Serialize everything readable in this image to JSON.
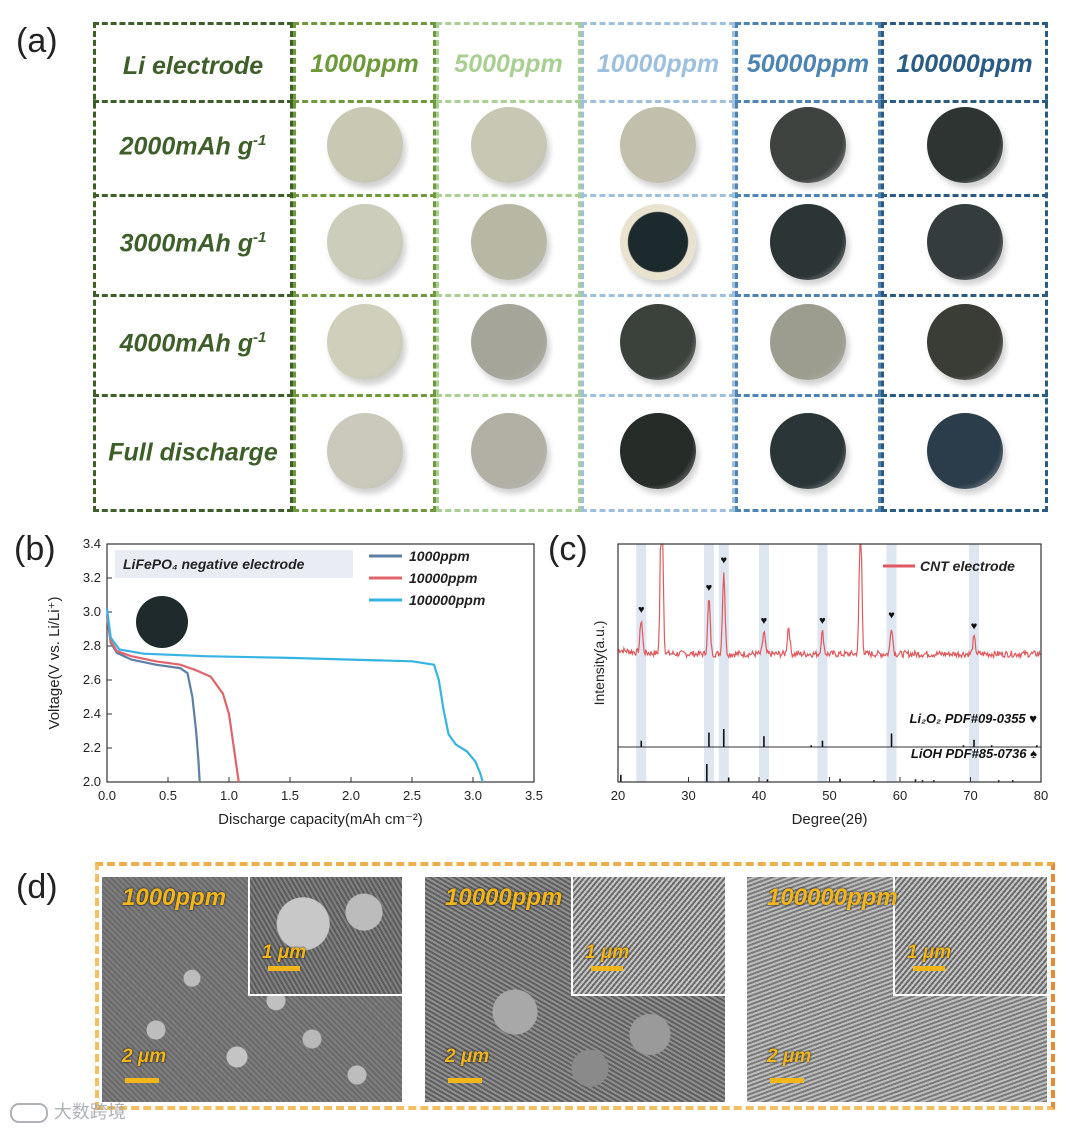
{
  "panel_labels": {
    "a": "(a)",
    "b": "(b)",
    "c": "(c)",
    "d": "(d)"
  },
  "panel_a": {
    "corner_label": "Li electrode",
    "columns": [
      {
        "label": "1000ppm",
        "color": "#6e9a3c"
      },
      {
        "label": "5000ppm",
        "color": "#a9cf93"
      },
      {
        "label": "10000ppm",
        "color": "#9cc0de"
      },
      {
        "label": "50000ppm",
        "color": "#4d84b3"
      },
      {
        "label": "100000ppm",
        "color": "#2a5b85"
      }
    ],
    "rows": [
      {
        "label": "2000mAh g",
        "sup": "-1"
      },
      {
        "label": "3000mAh g",
        "sup": "-1"
      },
      {
        "label": "4000mAh g",
        "sup": "-1"
      },
      {
        "label": "Full discharge",
        "sup": ""
      }
    ],
    "disc_colors": [
      [
        "#c9c8b3",
        "#c8c7b4",
        "#c2c0ac",
        "#3e4340",
        "#2d3432"
      ],
      [
        "#cdcdbb",
        "#b7b7a4",
        "#1d2a2d",
        "#2b3535",
        "#343c3d"
      ],
      [
        "#cfcfbc",
        "#a5a59a",
        "#3b423c",
        "#9c9c8f",
        "#3a3d36"
      ],
      [
        "#cbc9bb",
        "#b2b0a5",
        "#262c28",
        "#2a3538",
        "#2b3d4b"
      ]
    ]
  },
  "chart_data": [
    {
      "type": "line",
      "panel": "b",
      "xlabel": "Discharge capacity(mAh cm⁻²)",
      "ylabel": "Voltage(V vs. Li/Li⁺)",
      "annotation": "LiFePO₄ negative electrode",
      "xlim": [
        0.0,
        3.5
      ],
      "ylim": [
        2.0,
        3.4
      ],
      "xticks": [
        "0.0",
        "0.5",
        "1.0",
        "1.5",
        "2.0",
        "2.5",
        "3.0",
        "3.5"
      ],
      "yticks": [
        "2.0",
        "2.2",
        "2.4",
        "2.6",
        "2.8",
        "3.0",
        "3.2",
        "3.4"
      ],
      "legend_position": "top-right",
      "series": [
        {
          "name": "1000ppm",
          "color": "#5d7fa6",
          "points": [
            [
              0,
              2.98
            ],
            [
              0.03,
              2.82
            ],
            [
              0.08,
              2.76
            ],
            [
              0.2,
              2.72
            ],
            [
              0.4,
              2.69
            ],
            [
              0.6,
              2.67
            ],
            [
              0.66,
              2.64
            ],
            [
              0.7,
              2.5
            ],
            [
              0.73,
              2.3
            ],
            [
              0.75,
              2.12
            ],
            [
              0.76,
              2.0
            ]
          ]
        },
        {
          "name": "10000ppm",
          "color": "#e0646a",
          "points": [
            [
              0,
              2.98
            ],
            [
              0.03,
              2.83
            ],
            [
              0.08,
              2.77
            ],
            [
              0.2,
              2.74
            ],
            [
              0.4,
              2.71
            ],
            [
              0.6,
              2.69
            ],
            [
              0.72,
              2.66
            ],
            [
              0.85,
              2.62
            ],
            [
              0.95,
              2.52
            ],
            [
              1.0,
              2.4
            ],
            [
              1.04,
              2.2
            ],
            [
              1.07,
              2.05
            ],
            [
              1.08,
              2.0
            ]
          ]
        },
        {
          "name": "100000ppm",
          "color": "#35b4e4",
          "points": [
            [
              0,
              3.02
            ],
            [
              0.03,
              2.85
            ],
            [
              0.1,
              2.78
            ],
            [
              0.3,
              2.755
            ],
            [
              0.8,
              2.74
            ],
            [
              1.5,
              2.73
            ],
            [
              2.0,
              2.72
            ],
            [
              2.5,
              2.71
            ],
            [
              2.68,
              2.69
            ],
            [
              2.72,
              2.6
            ],
            [
              2.76,
              2.42
            ],
            [
              2.8,
              2.28
            ],
            [
              2.86,
              2.22
            ],
            [
              2.95,
              2.18
            ],
            [
              3.02,
              2.12
            ],
            [
              3.06,
              2.05
            ],
            [
              3.08,
              2.0
            ]
          ]
        }
      ]
    },
    {
      "type": "line",
      "panel": "c",
      "xlabel": "Degree(2θ)",
      "ylabel": "Intensity(a.u.)",
      "xlim": [
        20,
        80
      ],
      "xticks": [
        "20",
        "30",
        "40",
        "50",
        "60",
        "70",
        "80"
      ],
      "legend_position": "top-right",
      "series": [
        {
          "name": "CNT electrode",
          "color": "#df5a5e"
        }
      ],
      "peaks": [
        {
          "x": 23.3,
          "h": 0.6
        },
        {
          "x": 26.2,
          "h": 3.5
        },
        {
          "x": 32.9,
          "h": 1.0
        },
        {
          "x": 35.0,
          "h": 1.5
        },
        {
          "x": 40.7,
          "h": 0.4
        },
        {
          "x": 44.2,
          "h": 0.5
        },
        {
          "x": 49.0,
          "h": 0.4
        },
        {
          "x": 54.4,
          "h": 2.6
        },
        {
          "x": 58.8,
          "h": 0.5
        },
        {
          "x": 70.5,
          "h": 0.3
        }
      ],
      "heart_markers": [
        23.3,
        32.9,
        35.0,
        40.7,
        49.0,
        58.8,
        70.5
      ],
      "highlight_bands": [
        23.3,
        32.9,
        35.0,
        40.7,
        49.0,
        58.8,
        70.5
      ],
      "references": [
        {
          "label": "Li₂O₂ PDF#09-0355 ♥",
          "sticks": [
            [
              23.3,
              0.35
            ],
            [
              32.9,
              0.8
            ],
            [
              35.0,
              1.0
            ],
            [
              40.7,
              0.6
            ],
            [
              47.4,
              0.1
            ],
            [
              49.0,
              0.35
            ],
            [
              58.8,
              0.75
            ],
            [
              69.0,
              0.1
            ],
            [
              70.5,
              0.4
            ],
            [
              73.0,
              0.1
            ],
            [
              79.4,
              0.1
            ]
          ]
        },
        {
          "label": "LiOH PDF#85-0736 ♠",
          "sticks": [
            [
              20.4,
              0.4
            ],
            [
              32.6,
              1.0
            ],
            [
              35.7,
              0.25
            ],
            [
              41.2,
              0.15
            ],
            [
              51.5,
              0.18
            ],
            [
              56.3,
              0.1
            ],
            [
              62.2,
              0.15
            ],
            [
              63.2,
              0.1
            ],
            [
              64.8,
              0.1
            ],
            [
              74.0,
              0.1
            ],
            [
              76.0,
              0.1
            ]
          ]
        }
      ]
    }
  ],
  "panel_d": {
    "images": [
      {
        "label": "1000ppm",
        "scale_main": "2 μm",
        "scale_inset": "1 μm"
      },
      {
        "label": "10000ppm",
        "scale_main": "2 μm",
        "scale_inset": "1 μm"
      },
      {
        "label": "100000ppm",
        "scale_main": "2 μm",
        "scale_inset": "1 μm"
      }
    ]
  },
  "watermark": "大数跨境"
}
